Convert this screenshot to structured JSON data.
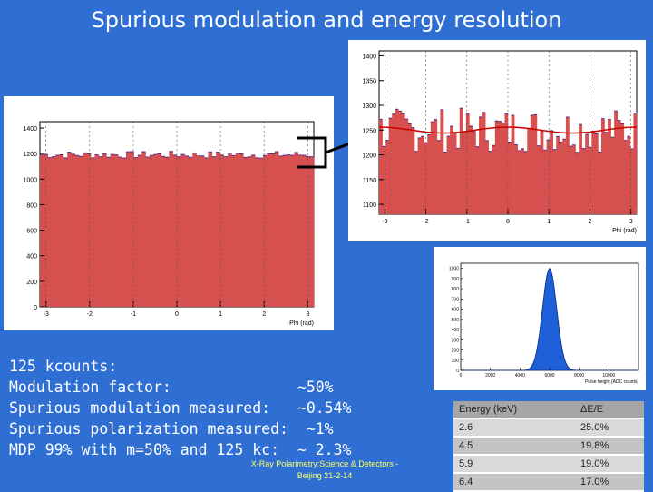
{
  "title": "Spurious modulation and energy resolution",
  "stats_lines": [
    "125 kcounts:",
    "Modulation factor:              ~50%",
    "Spurious modulation measured:   ~0.54%",
    "Spurious polarization measured:  ~1%",
    "MDP 99% with m=50% and 125 kc:  ~ 2.3%"
  ],
  "footer": {
    "line1": "X-Ray Polarimetry:Science & Detectors -",
    "line2": "Beijing 21-2-14"
  },
  "table": {
    "headers": [
      "Energy (keV)",
      "ΔE/E"
    ],
    "rows": [
      [
        "2.6",
        "25.0%"
      ],
      [
        "4.5",
        "19.8%"
      ],
      [
        "5.9",
        "19.0%"
      ],
      [
        "6.4",
        "17.0%"
      ]
    ]
  },
  "chart_data": [
    {
      "type": "bar",
      "xlabel": "Phi (rad)",
      "x_ticks": [
        "-3",
        "-2",
        "-1",
        "0",
        "1",
        "2",
        "3"
      ],
      "y_ticks": [
        "0",
        "200",
        "400",
        "600",
        "800",
        "1000",
        "1200",
        "1400"
      ],
      "xlim": [
        -3.14,
        3.14
      ],
      "ylim": [
        0,
        1450
      ],
      "approx_level": 1190,
      "bar_color": "#d65050"
    },
    {
      "type": "bar",
      "xlabel": "Phi (rad)",
      "x_ticks": [
        "-3",
        "-2",
        "-1",
        "0",
        "1",
        "2",
        "3"
      ],
      "y_ticks": [
        "1100",
        "1150",
        "1200",
        "1250",
        "1300",
        "1350",
        "1400"
      ],
      "xlim": [
        -3.14,
        3.14
      ],
      "ylim": [
        1080,
        1410
      ],
      "approx_level": 1250,
      "bar_color": "#d65050",
      "fit_color": "#cc0000"
    },
    {
      "type": "line",
      "xlabel": "Pulse height (ADC counts)",
      "x_ticks": [
        "0",
        "2000",
        "4000",
        "6000",
        "8000",
        "10000"
      ],
      "y_ticks": [
        "0",
        "100",
        "200",
        "300",
        "400",
        "500",
        "600",
        "700",
        "800",
        "900",
        "1000"
      ],
      "ylim": [
        0,
        1050
      ],
      "peak": {
        "x": 6000,
        "y": 1000
      },
      "fill_color": "#1e5fd8"
    }
  ]
}
